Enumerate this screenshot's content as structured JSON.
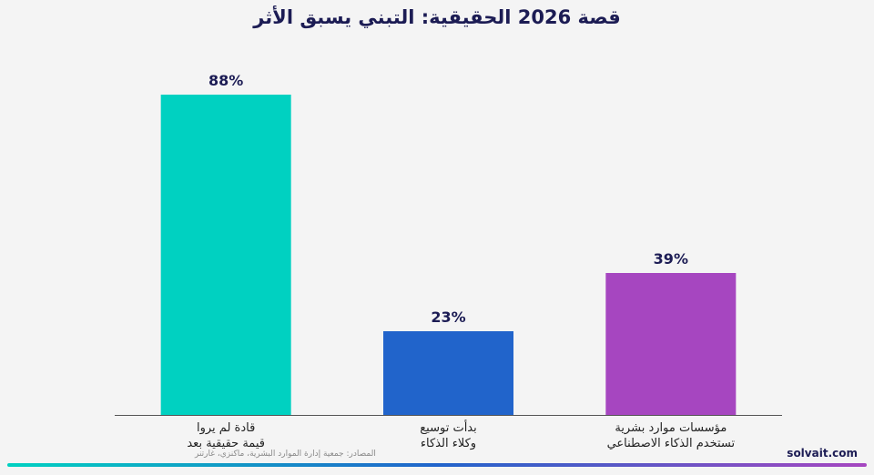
{
  "chart_data": {
    "type": "bar",
    "title": "قصة 2026 الحقيقية: التبني يسبق الأثر",
    "categories": [
      [
        "قادة لم يروا",
        "قيمة حقيقية بعد"
      ],
      [
        "بدأت توسيع",
        "وكلاء الذكاء"
      ],
      [
        "مؤسسات موارد بشرية",
        "تستخدم الذكاء الاصطناعي"
      ]
    ],
    "values": [
      88,
      23,
      39
    ],
    "value_labels": [
      "88%",
      "23%",
      "39%"
    ],
    "colors": [
      "#00d1c1",
      "#2164cb",
      "#a646c0"
    ],
    "ylim": [
      0,
      100
    ],
    "xlabel": "",
    "ylabel": "",
    "grid": false
  },
  "footer": {
    "source": "المصادر: جمعية إدارة الموارد البشرية، ماكنزي، غارتنر",
    "brand": "solvait.com",
    "gradient": [
      "#00d1c1",
      "#2164cb",
      "#a646c0"
    ]
  }
}
